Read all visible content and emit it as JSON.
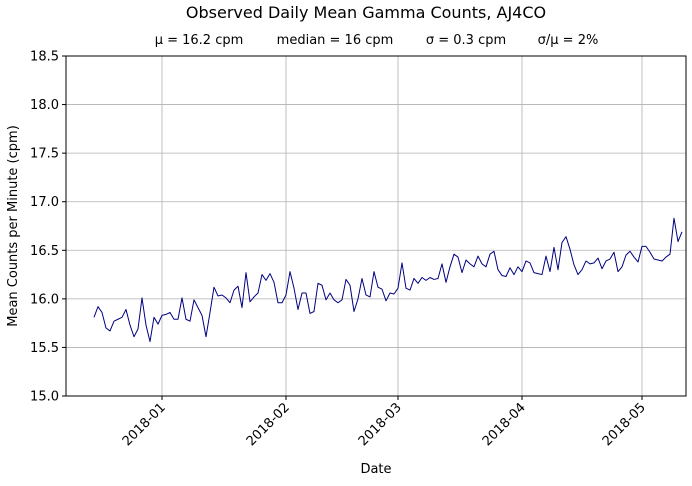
{
  "chart_data": {
    "type": "line",
    "title": "Observed Daily Mean Gamma Counts, AJ4CO",
    "subtitle": {
      "mean": "μ = 16.2 cpm",
      "median": "median = 16 cpm",
      "std": "σ = 0.3 cpm",
      "cv": "σ/μ = 2%"
    },
    "xlabel": "Date",
    "ylabel": "Mean Counts per Minute (cpm)",
    "ylim": [
      15.0,
      18.5
    ],
    "xlim": [
      "2017-12-08",
      "2018-05-12"
    ],
    "grid": true,
    "line_color": "#000080",
    "x_ticks": [
      {
        "date": "2018-01-01",
        "label": "2018-01"
      },
      {
        "date": "2018-02-01",
        "label": "2018-02"
      },
      {
        "date": "2018-03-01",
        "label": "2018-03"
      },
      {
        "date": "2018-04-01",
        "label": "2018-04"
      },
      {
        "date": "2018-05-01",
        "label": "2018-05"
      }
    ],
    "y_ticks": [
      "15.0",
      "15.5",
      "16.0",
      "16.5",
      "17.0",
      "17.5",
      "18.0",
      "18.5"
    ],
    "series": [
      {
        "start_date": "2017-12-15",
        "step_days": 1,
        "values": [
          15.81,
          15.92,
          15.86,
          15.7,
          15.67,
          15.77,
          15.79,
          15.81,
          15.89,
          15.73,
          15.61,
          15.69,
          16.01,
          15.73,
          15.56,
          15.81,
          15.74,
          15.83,
          15.84,
          15.86,
          15.79,
          15.79,
          16.01,
          15.79,
          15.77,
          15.99,
          15.91,
          15.83,
          15.61,
          15.86,
          16.12,
          16.03,
          16.04,
          16.01,
          15.96,
          16.09,
          16.13,
          15.91,
          16.27,
          15.97,
          16.02,
          16.06,
          16.25,
          16.19,
          16.26,
          16.17,
          15.96,
          15.96,
          16.04,
          16.28,
          16.11,
          15.89,
          16.06,
          16.06,
          15.85,
          15.87,
          16.16,
          16.14,
          15.99,
          16.06,
          15.99,
          15.96,
          15.99,
          16.2,
          16.14,
          15.87,
          16.0,
          16.21,
          16.04,
          16.02,
          16.28,
          16.12,
          16.1,
          15.98,
          16.06,
          16.05,
          16.11,
          16.37,
          16.11,
          16.09,
          16.21,
          16.16,
          16.22,
          16.19,
          16.22,
          16.2,
          16.21,
          16.36,
          16.17,
          16.33,
          16.46,
          16.43,
          16.27,
          16.4,
          16.36,
          16.33,
          16.44,
          16.36,
          16.33,
          16.46,
          16.49,
          16.3,
          16.24,
          16.23,
          16.32,
          16.25,
          16.33,
          16.28,
          16.39,
          16.37,
          16.27,
          16.26,
          16.25,
          16.44,
          16.28,
          16.53,
          16.3,
          16.58,
          16.64,
          16.51,
          16.35,
          16.25,
          16.3,
          16.39,
          16.36,
          16.37,
          16.42,
          16.31,
          16.39,
          16.41,
          16.48,
          16.28,
          16.33,
          16.45,
          16.49,
          16.43,
          16.38,
          16.54,
          16.54,
          16.48,
          16.41,
          16.4,
          16.39,
          16.43,
          16.46,
          16.83,
          16.59,
          16.69
        ]
      }
    ]
  }
}
